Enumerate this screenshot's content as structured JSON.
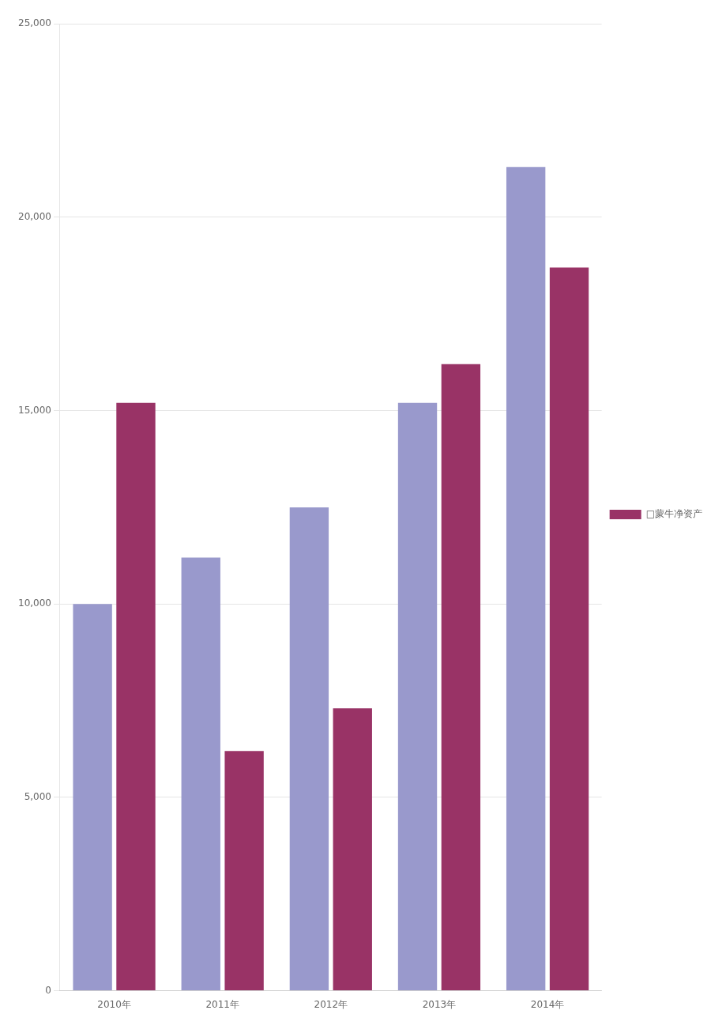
{
  "chart_data": {
    "type": "bar",
    "categories": [
      "2010年",
      "2011年",
      "2012年",
      "2013年",
      "2014年"
    ],
    "series": [
      {
        "color": "#9999cc",
        "values": [
          10000,
          11200,
          12500,
          15200,
          21300
        ]
      },
      {
        "name": "□蒙牛净资产",
        "color": "#993366",
        "values": [
          15200,
          6200,
          7300,
          16200,
          18700
        ]
      }
    ],
    "ylim": [
      0,
      25000
    ],
    "yticks": [
      0,
      5000,
      10000,
      15000,
      20000,
      25000
    ],
    "grid": true,
    "legend": "right"
  }
}
